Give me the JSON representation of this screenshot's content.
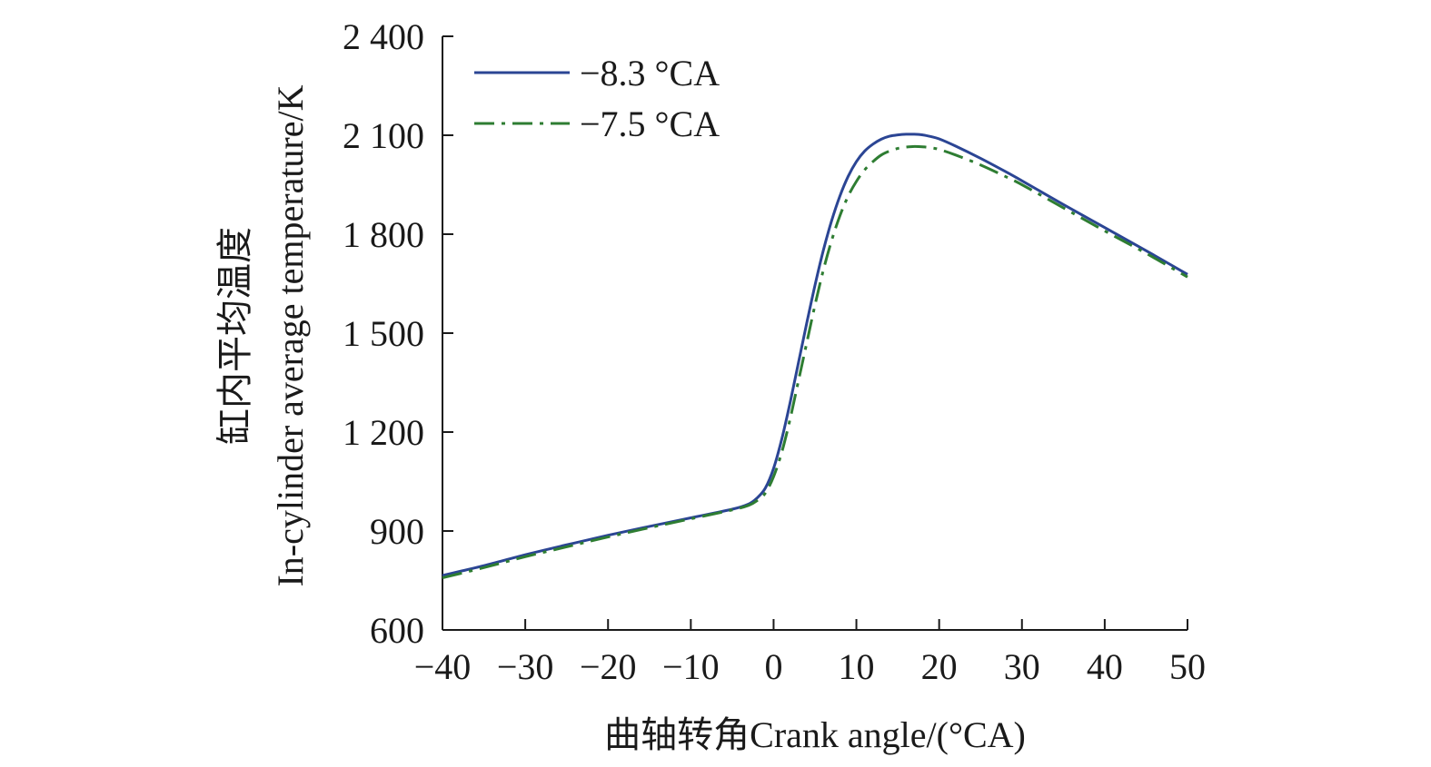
{
  "chart_data": {
    "type": "line",
    "xlabel": "曲轴转角Crank angle/(°CA)",
    "ylabel_cn": "缸内平均温度",
    "ylabel_en": "In-cylinder average temperature/K",
    "xlim": [
      -40,
      50
    ],
    "ylim": [
      600,
      2400
    ],
    "x_ticks": [
      -40,
      -30,
      -20,
      -10,
      0,
      10,
      20,
      30,
      40,
      50
    ],
    "x_tick_labels": [
      "−40",
      "−30",
      "−20",
      "−10",
      "0",
      "10",
      "20",
      "30",
      "40",
      "50"
    ],
    "y_ticks": [
      600,
      900,
      1200,
      1500,
      1800,
      2100,
      2400
    ],
    "y_tick_labels": [
      "600",
      "900",
      "1 200",
      "1 500",
      "1 800",
      "2 100",
      "2 400"
    ],
    "grid": false,
    "legend_position": "top-left",
    "series": [
      {
        "name": "−8.3 °CA",
        "color": "#2b4594",
        "dash": "solid",
        "x": [
          -40,
          -35,
          -30,
          -25,
          -20,
          -15,
          -10,
          -5,
          -3,
          -2,
          -1,
          0,
          1,
          2,
          3,
          4,
          5,
          6,
          7,
          8,
          9,
          10,
          11,
          12,
          13,
          14,
          15,
          16,
          17,
          18,
          19,
          20,
          22,
          25,
          28,
          30,
          35,
          40,
          45,
          50
        ],
        "y": [
          765,
          795,
          828,
          858,
          887,
          914,
          940,
          966,
          982,
          1000,
          1030,
          1090,
          1180,
          1290,
          1410,
          1530,
          1645,
          1750,
          1840,
          1915,
          1975,
          2020,
          2052,
          2073,
          2088,
          2097,
          2101,
          2103,
          2103,
          2101,
          2096,
          2089,
          2067,
          2030,
          1990,
          1962,
          1890,
          1820,
          1750,
          1678
        ]
      },
      {
        "name": "−7.5 °CA",
        "color": "#2e7d32",
        "dash": "dashdot",
        "x": [
          -40,
          -35,
          -30,
          -25,
          -20,
          -15,
          -10,
          -5,
          -3,
          -2,
          -1,
          0,
          1,
          2,
          3,
          4,
          5,
          6,
          7,
          8,
          9,
          10,
          11,
          12,
          13,
          14,
          15,
          16,
          17,
          18,
          19,
          20,
          22,
          25,
          28,
          30,
          35,
          40,
          45,
          50
        ],
        "y": [
          758,
          789,
          822,
          852,
          882,
          910,
          937,
          964,
          978,
          992,
          1015,
          1065,
          1140,
          1240,
          1355,
          1470,
          1585,
          1690,
          1780,
          1855,
          1915,
          1960,
          1995,
          2020,
          2040,
          2052,
          2060,
          2064,
          2066,
          2065,
          2062,
          2057,
          2040,
          2010,
          1975,
          1950,
          1880,
          1810,
          1742,
          1670
        ]
      }
    ]
  }
}
